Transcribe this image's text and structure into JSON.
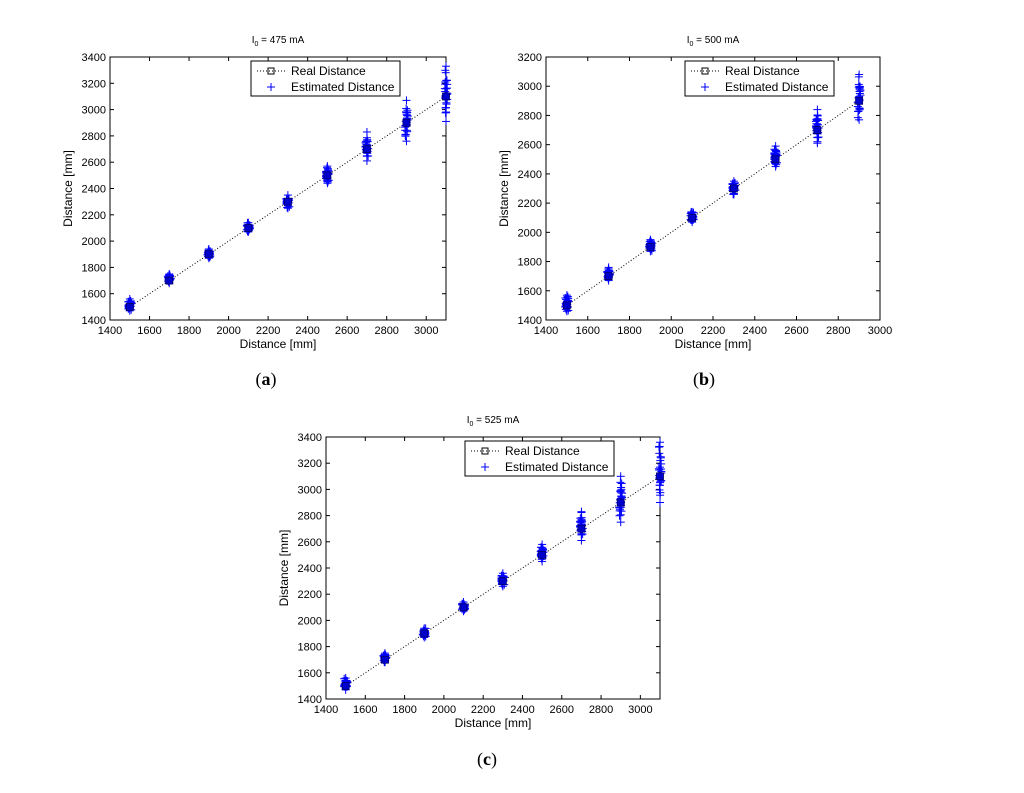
{
  "chart_data": [
    {
      "type": "scatter",
      "panel_label": "a",
      "title": {
        "main": "I",
        "sub": "0",
        "rest": " = 475 mA"
      },
      "xlabel": "Distance [mm]",
      "ylabel": "Distance [mm]",
      "xlim": [
        1400,
        3100
      ],
      "ylim": [
        1400,
        3400
      ],
      "xticks": [
        1400,
        1600,
        1800,
        2000,
        2200,
        2400,
        2600,
        2800,
        3000
      ],
      "yticks": [
        1400,
        1600,
        1800,
        2000,
        2200,
        2400,
        2600,
        2800,
        3000,
        3200,
        3400
      ],
      "legend": "top-right",
      "series": [
        {
          "name": "Real Distance",
          "style": "dotted-line-square",
          "color": "#000000",
          "x": [
            1500,
            1700,
            1900,
            2100,
            2300,
            2500,
            2700,
            2900,
            3100
          ],
          "y": [
            1500,
            1700,
            1900,
            2100,
            2300,
            2500,
            2700,
            2900,
            3100
          ]
        },
        {
          "name": "Estimated Distance",
          "style": "plus",
          "color": "#0000ff",
          "x": [
            1500,
            1700,
            1900,
            2100,
            2300,
            2500,
            2700,
            2900,
            3100
          ],
          "ymin": [
            1470,
            1680,
            1870,
            2070,
            2250,
            2440,
            2610,
            2760,
            2910
          ],
          "ymax": [
            1560,
            1750,
            1940,
            2140,
            2350,
            2570,
            2830,
            3070,
            3330
          ]
        }
      ]
    },
    {
      "type": "scatter",
      "panel_label": "b",
      "title": {
        "main": "I",
        "sub": "0",
        "rest": " = 500 mA"
      },
      "xlabel": "Distance [mm]",
      "ylabel": "Distance [mm]",
      "xlim": [
        1400,
        3000
      ],
      "ylim": [
        1400,
        3200
      ],
      "xticks": [
        1400,
        1600,
        1800,
        2000,
        2200,
        2400,
        2600,
        2800,
        3000
      ],
      "yticks": [
        1400,
        1600,
        1800,
        2000,
        2200,
        2400,
        2600,
        2800,
        3000,
        3200
      ],
      "legend": "top-right",
      "series": [
        {
          "name": "Real Distance",
          "style": "dotted-line-square",
          "color": "#000000",
          "x": [
            1500,
            1700,
            1900,
            2100,
            2300,
            2500,
            2700,
            2900
          ],
          "y": [
            1500,
            1700,
            1900,
            2100,
            2300,
            2500,
            2700,
            2900
          ]
        },
        {
          "name": "Estimated Distance",
          "style": "plus",
          "color": "#0000ff",
          "x": [
            1500,
            1700,
            1900,
            2100,
            2300,
            2500,
            2700,
            2900
          ],
          "ymin": [
            1460,
            1670,
            1870,
            2070,
            2260,
            2450,
            2610,
            2770
          ],
          "ymax": [
            1570,
            1760,
            1950,
            2140,
            2350,
            2590,
            2840,
            3080
          ]
        }
      ]
    },
    {
      "type": "scatter",
      "panel_label": "c",
      "title": {
        "main": "I",
        "sub": "0",
        "rest": " = 525 mA"
      },
      "xlabel": "Distance [mm]",
      "ylabel": "Distance [mm]",
      "xlim": [
        1400,
        3100
      ],
      "ylim": [
        1400,
        3400
      ],
      "xticks": [
        1400,
        1600,
        1800,
        2000,
        2200,
        2400,
        2600,
        2800,
        3000
      ],
      "yticks": [
        1400,
        1600,
        1800,
        2000,
        2200,
        2400,
        2600,
        2800,
        3000,
        3200,
        3400
      ],
      "legend": "top-right",
      "series": [
        {
          "name": "Real Distance",
          "style": "dotted-line-square",
          "color": "#000000",
          "x": [
            1500,
            1700,
            1900,
            2100,
            2300,
            2500,
            2700,
            2900,
            3100
          ],
          "y": [
            1500,
            1700,
            1900,
            2100,
            2300,
            2500,
            2700,
            2900,
            3100
          ]
        },
        {
          "name": "Estimated Distance",
          "style": "plus",
          "color": "#0000ff",
          "x": [
            1500,
            1700,
            1900,
            2100,
            2300,
            2500,
            2700,
            2900,
            3100
          ],
          "ymin": [
            1470,
            1680,
            1870,
            2070,
            2260,
            2450,
            2610,
            2750,
            2900
          ],
          "ymax": [
            1560,
            1750,
            1940,
            2140,
            2360,
            2580,
            2830,
            3100,
            3360
          ]
        }
      ]
    }
  ]
}
